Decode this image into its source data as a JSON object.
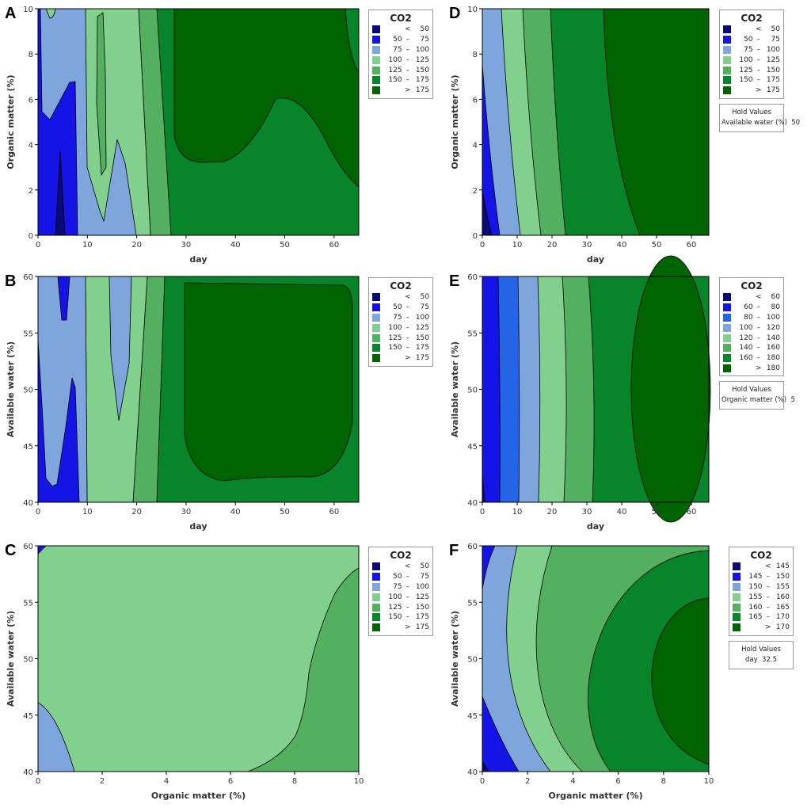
{
  "colors": {
    "navy": "#0a0a78",
    "blue": "#1414e6",
    "blue2": "#2464e6",
    "lightblue": "#7ea6dc",
    "lightgreen": "#82d08e",
    "medgreen": "#52b060",
    "green": "#08852a",
    "darkgreen": "#006400"
  },
  "chart_data": [
    {
      "panel": "A",
      "type": "contour",
      "xlabel": "day",
      "ylabel": "Organic matter (%)",
      "xlim": [
        0,
        65
      ],
      "ylim": [
        0,
        10
      ],
      "xticks": [
        0,
        10,
        20,
        30,
        40,
        50,
        60
      ],
      "yticks": [
        0,
        2,
        4,
        6,
        8,
        10
      ],
      "z": "CO2",
      "legend": {
        "title": "CO2",
        "levels": [
          [
            "",
            "<",
            "50"
          ],
          [
            "50",
            "–",
            "75"
          ],
          [
            "75",
            "–",
            "100"
          ],
          [
            "100",
            "–",
            "125"
          ],
          [
            "125",
            "–",
            "150"
          ],
          [
            "150",
            "–",
            "175"
          ],
          [
            "",
            ">",
            "175"
          ]
        ],
        "colors": [
          "navy",
          "blue",
          "lightblue",
          "lightgreen",
          "medgreen",
          "green",
          "darkgreen"
        ]
      }
    },
    {
      "panel": "B",
      "type": "contour",
      "xlabel": "day",
      "ylabel": "Available water (%)",
      "xlim": [
        0,
        65
      ],
      "ylim": [
        40,
        60
      ],
      "xticks": [
        0,
        10,
        20,
        30,
        40,
        50,
        60
      ],
      "yticks": [
        40,
        45,
        50,
        55,
        60
      ],
      "z": "CO2",
      "legend": {
        "title": "CO2",
        "levels": [
          [
            "",
            "<",
            "50"
          ],
          [
            "50",
            "–",
            "75"
          ],
          [
            "75",
            "–",
            "100"
          ],
          [
            "100",
            "–",
            "125"
          ],
          [
            "125",
            "–",
            "150"
          ],
          [
            "150",
            "–",
            "175"
          ],
          [
            "",
            ">",
            "175"
          ]
        ],
        "colors": [
          "navy",
          "blue",
          "lightblue",
          "lightgreen",
          "medgreen",
          "green",
          "darkgreen"
        ]
      }
    },
    {
      "panel": "C",
      "type": "contour",
      "xlabel": "Organic matter (%)",
      "ylabel": "Available water (%)",
      "xlim": [
        0,
        10
      ],
      "ylim": [
        40,
        60
      ],
      "xticks": [
        0,
        2,
        4,
        6,
        8,
        10
      ],
      "yticks": [
        40,
        45,
        50,
        55,
        60
      ],
      "z": "CO2",
      "legend": {
        "title": "CO2",
        "levels": [
          [
            "",
            "<",
            "50"
          ],
          [
            "50",
            "–",
            "75"
          ],
          [
            "75",
            "–",
            "100"
          ],
          [
            "100",
            "–",
            "125"
          ],
          [
            "125",
            "–",
            "150"
          ],
          [
            "150",
            "–",
            "175"
          ],
          [
            "",
            ">",
            "175"
          ]
        ],
        "colors": [
          "navy",
          "blue",
          "lightblue",
          "lightgreen",
          "medgreen",
          "green",
          "darkgreen"
        ]
      }
    },
    {
      "panel": "D",
      "type": "contour",
      "xlabel": "day",
      "ylabel": "Organic matter (%)",
      "xlim": [
        0,
        65
      ],
      "ylim": [
        0,
        10
      ],
      "xticks": [
        0,
        10,
        20,
        30,
        40,
        50,
        60
      ],
      "yticks": [
        0,
        2,
        4,
        6,
        8,
        10
      ],
      "z": "CO2",
      "legend": {
        "title": "CO2",
        "levels": [
          [
            "",
            "<",
            "50"
          ],
          [
            "50",
            "–",
            "75"
          ],
          [
            "75",
            "–",
            "100"
          ],
          [
            "100",
            "–",
            "125"
          ],
          [
            "125",
            "–",
            "150"
          ],
          [
            "150",
            "–",
            "175"
          ],
          [
            "",
            ">",
            "175"
          ]
        ],
        "colors": [
          "navy",
          "blue",
          "lightblue",
          "lightgreen",
          "medgreen",
          "green",
          "darkgreen"
        ]
      },
      "hold": {
        "title": "Hold Values",
        "label": "Available water (%)",
        "value": "50"
      }
    },
    {
      "panel": "E",
      "type": "contour",
      "xlabel": "day",
      "ylabel": "Available water (%)",
      "xlim": [
        0,
        65
      ],
      "ylim": [
        40,
        60
      ],
      "xticks": [
        0,
        10,
        20,
        30,
        40,
        50,
        60
      ],
      "yticks": [
        40,
        45,
        50,
        55,
        60
      ],
      "z": "CO2",
      "legend": {
        "title": "CO2",
        "levels": [
          [
            "",
            "<",
            "60"
          ],
          [
            "60",
            "–",
            "80"
          ],
          [
            "80",
            "–",
            "100"
          ],
          [
            "100",
            "–",
            "120"
          ],
          [
            "120",
            "–",
            "140"
          ],
          [
            "140",
            "–",
            "160"
          ],
          [
            "160",
            "–",
            "180"
          ],
          [
            "",
            ">",
            "180"
          ]
        ],
        "colors": [
          "navy",
          "blue",
          "blue2",
          "lightblue",
          "lightgreen",
          "medgreen",
          "green",
          "darkgreen"
        ]
      },
      "hold": {
        "title": "Hold Values",
        "label": "Organic matter (%)",
        "value": "5"
      }
    },
    {
      "panel": "F",
      "type": "contour",
      "xlabel": "Organic matter (%)",
      "ylabel": "Available water (%)",
      "xlim": [
        0,
        10
      ],
      "ylim": [
        40,
        60
      ],
      "xticks": [
        0,
        2,
        4,
        6,
        8,
        10
      ],
      "yticks": [
        40,
        45,
        50,
        55,
        60
      ],
      "z": "CO2",
      "legend": {
        "title": "CO2",
        "levels": [
          [
            "",
            "<",
            "145"
          ],
          [
            "145",
            "–",
            "150"
          ],
          [
            "150",
            "–",
            "155"
          ],
          [
            "155",
            "–",
            "160"
          ],
          [
            "160",
            "–",
            "165"
          ],
          [
            "165",
            "–",
            "170"
          ],
          [
            "",
            ">",
            "170"
          ]
        ],
        "colors": [
          "navy",
          "blue",
          "lightblue",
          "lightgreen",
          "medgreen",
          "green",
          "darkgreen"
        ]
      },
      "hold": {
        "title": "Hold Values",
        "label": "day",
        "value": "32.5"
      }
    }
  ]
}
